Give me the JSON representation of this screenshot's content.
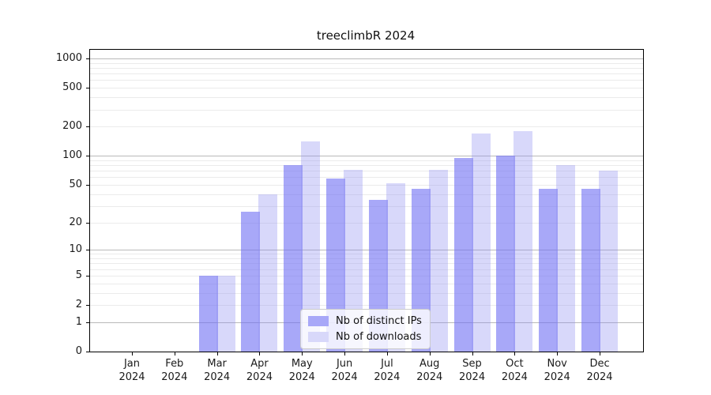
{
  "title": "treeclimbR 2024",
  "chart_data": {
    "type": "bar",
    "title": "treeclimbR 2024",
    "categories": [
      "Jan 2024",
      "Feb 2024",
      "Mar 2024",
      "Apr 2024",
      "May 2024",
      "Jun 2024",
      "Jul 2024",
      "Aug 2024",
      "Sep 2024",
      "Oct 2024",
      "Nov 2024",
      "Dec 2024"
    ],
    "series": [
      {
        "name": "Nb of distinct IPs",
        "swatch_color": "#a8a8f8",
        "fill": "rgba(110,110,243,0.6)",
        "values": [
          0,
          0,
          5,
          26,
          80,
          58,
          35,
          45,
          95,
          100,
          45,
          45
        ]
      },
      {
        "name": "Nb of downloads",
        "swatch_color": "#d8d8fa",
        "fill": "rgba(144,144,241,0.35)",
        "values": [
          0,
          0,
          5,
          40,
          140,
          72,
          52,
          72,
          170,
          180,
          80,
          70
        ]
      }
    ],
    "yscale": "log1p",
    "yticks": [
      0,
      1,
      2,
      5,
      10,
      20,
      50,
      100,
      200,
      500,
      1000
    ],
    "ylim": [
      0,
      1228
    ],
    "xlabel": "",
    "ylabel": "",
    "grid": true,
    "major_grid_values": [
      1,
      10,
      100,
      1000
    ],
    "major_grid_color": "#b9b9b9",
    "minor_grid_color": "#ebebeb",
    "legend_position": "lower center"
  }
}
